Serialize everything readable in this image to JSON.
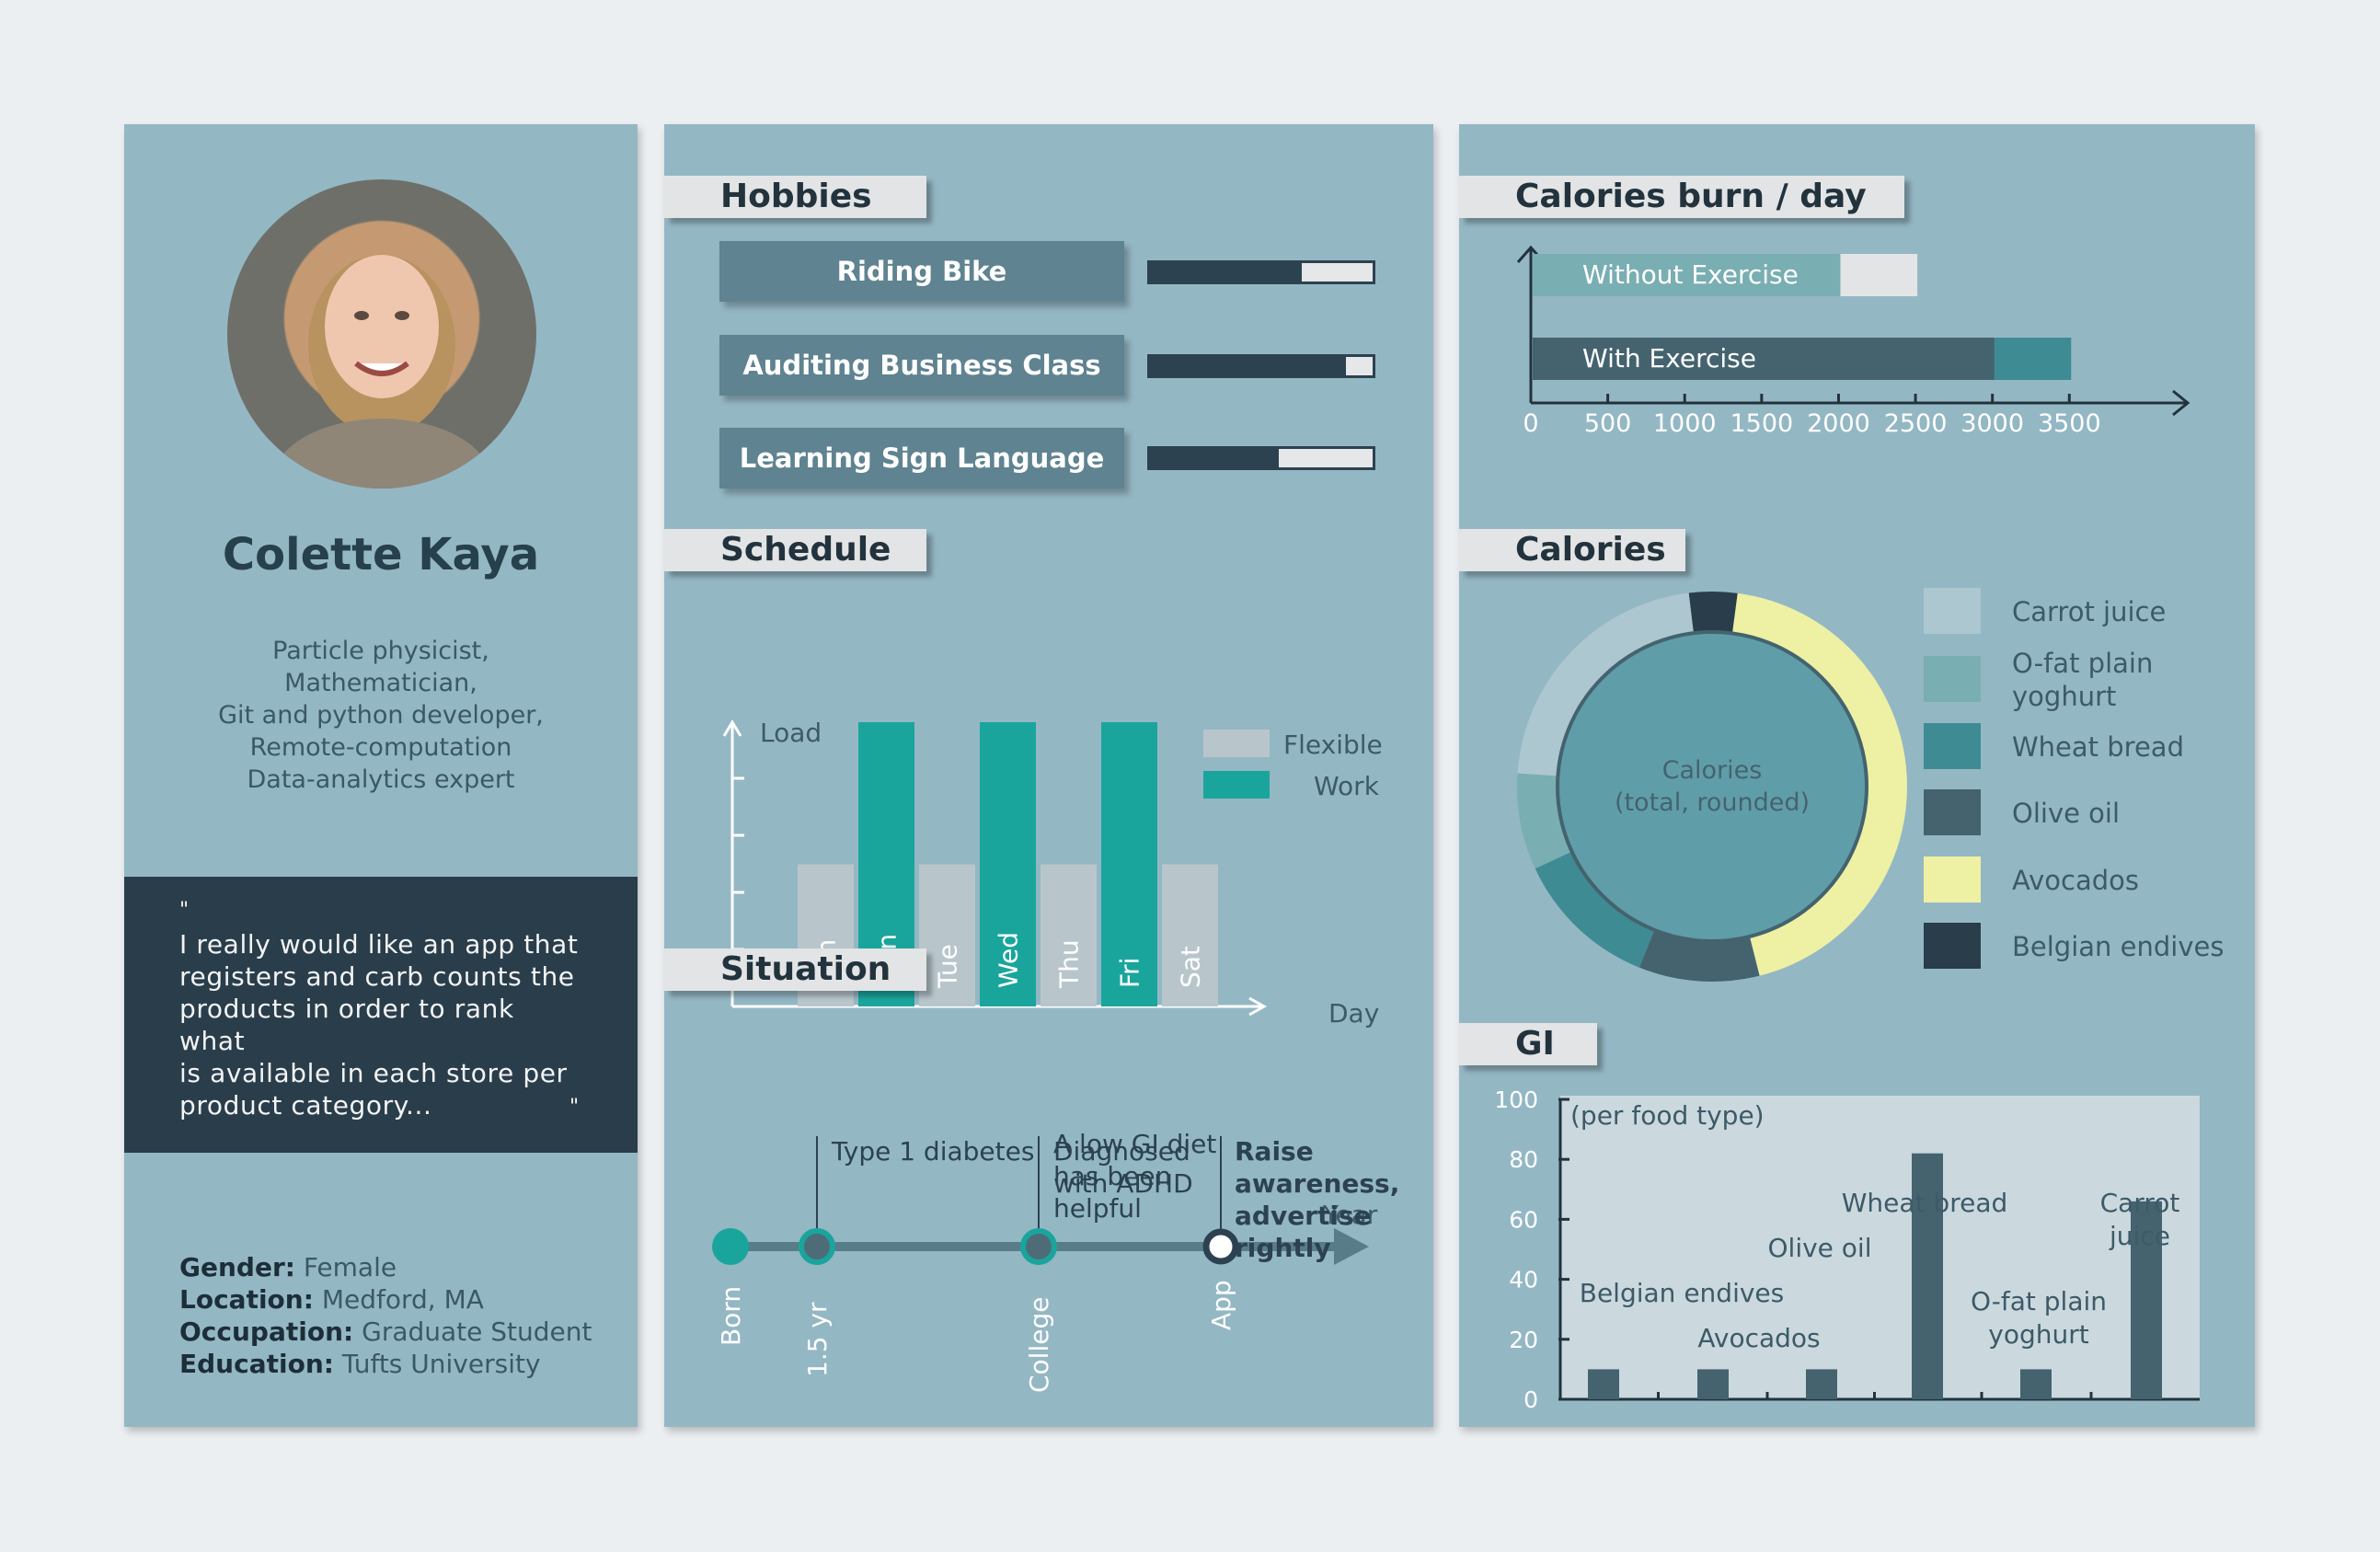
{
  "profile": {
    "name": "Colette Kaya",
    "description": [
      "Particle physicist,",
      "Mathematician,",
      "Git and python developer,",
      "Remote-computation",
      "Data-analytics expert"
    ],
    "quote_open": "\"",
    "quote": [
      "I really would like an app that",
      "registers and carb counts the",
      "products in order to rank what",
      "is available in each store per",
      "product category..."
    ],
    "quote_close": "\"",
    "details": [
      {
        "label": "Gender:",
        "value": "Female"
      },
      {
        "label": "Location:",
        "value": "Medford, MA"
      },
      {
        "label": "Occupation:",
        "value": "Graduate Student"
      },
      {
        "label": "Education:",
        "value": "Tufts University"
      }
    ]
  },
  "hobbies": {
    "title": "Hobbies",
    "items": [
      {
        "label": "Riding Bike",
        "level": 0.68
      },
      {
        "label": "Auditing Business Class",
        "level": 0.88
      },
      {
        "label": "Learning Sign Language",
        "level": 0.58
      }
    ]
  },
  "colors": {
    "dark": "#2c4250",
    "teal": "#1aa59c",
    "flexible": "#b8c6cc",
    "panel": "#94b7c4",
    "carrot": "#acc7cf",
    "ofat": "#79aeb2",
    "wheat": "#3f8b93",
    "olive": "#44636f",
    "avocado": "#eef0a4",
    "endive": "#2a3d4a"
  },
  "chart_data": [
    {
      "type": "bar",
      "title": "Schedule",
      "ylabel": "Load",
      "xlabel": "Day",
      "categories": [
        "Sun",
        "Mon",
        "Tue",
        "Wed",
        "Thu",
        "Fri",
        "Sat"
      ],
      "series": [
        {
          "name": "Flexible",
          "values": [
            2.5,
            null,
            2.5,
            null,
            2.5,
            null,
            2.5
          ]
        },
        {
          "name": "Work",
          "values": [
            null,
            5,
            null,
            5,
            null,
            5,
            null
          ]
        }
      ],
      "ylim": [
        0,
        5
      ],
      "legend": "top-right"
    },
    {
      "type": "bar",
      "title": "Calories burn / day",
      "orientation": "horizontal",
      "xticks": [
        0,
        500,
        1000,
        1500,
        2000,
        2500,
        3000,
        3500
      ],
      "xlim": [
        0,
        4150
      ],
      "bars": [
        {
          "label": "Without Exercise",
          "value": 2500,
          "highlight": 2000
        },
        {
          "label": "With Exercise",
          "value": 3500,
          "highlight": 3000
        }
      ]
    },
    {
      "type": "pie",
      "title": "Calories",
      "center_label": [
        "Calories",
        "(total, rounded)"
      ],
      "slices": [
        {
          "name": "Belgian endives",
          "value": 4,
          "color": "#2a3d4a"
        },
        {
          "name": "Avocados",
          "value": 44,
          "color": "#eef0a4"
        },
        {
          "name": "Olive oil",
          "value": 10,
          "color": "#44636f"
        },
        {
          "name": "Wheat bread",
          "value": 12,
          "color": "#3f8b93"
        },
        {
          "name": "O-fat plain yoghurt",
          "value": 8,
          "color": "#79aeb2"
        },
        {
          "name": "Carrot juice",
          "value": 22,
          "color": "#acc7cf"
        }
      ],
      "legend": [
        "Carrot juice",
        "O-fat plain yoghurt",
        "Wheat bread",
        "Olive oil",
        "Avocados",
        "Belgian endives"
      ],
      "legend_lines": [
        [
          "Carrot juice"
        ],
        [
          "O-fat plain",
          "yoghurt"
        ],
        [
          "Wheat bread"
        ],
        [
          "Olive oil"
        ],
        [
          "Avocados"
        ],
        [
          "Belgian endives"
        ]
      ]
    },
    {
      "type": "bar",
      "title": "GI",
      "subtitle": "(per food type)",
      "yticks": [
        0,
        20,
        40,
        60,
        80,
        100
      ],
      "ylim": [
        0,
        100
      ],
      "categories": [
        "Belgian endives",
        "Avocados",
        "Olive oil",
        "Wheat bread",
        "O-fat plain yoghurt",
        "Carrot juice"
      ],
      "values": [
        10,
        10,
        10,
        82,
        10,
        66
      ]
    }
  ],
  "situation": {
    "title": "Situation",
    "axis_label": "Year",
    "points": [
      "Born",
      "1.5 yr",
      "College",
      "App"
    ],
    "notes": {
      "diabetes": "Type 1 diabetes",
      "adhd": [
        "Diagnosed",
        "with ADHD"
      ],
      "gi": [
        "A low GI diet",
        "has been",
        "helpful"
      ],
      "raise": [
        "Raise",
        "awareness,",
        "advertise",
        "rightly"
      ]
    }
  }
}
